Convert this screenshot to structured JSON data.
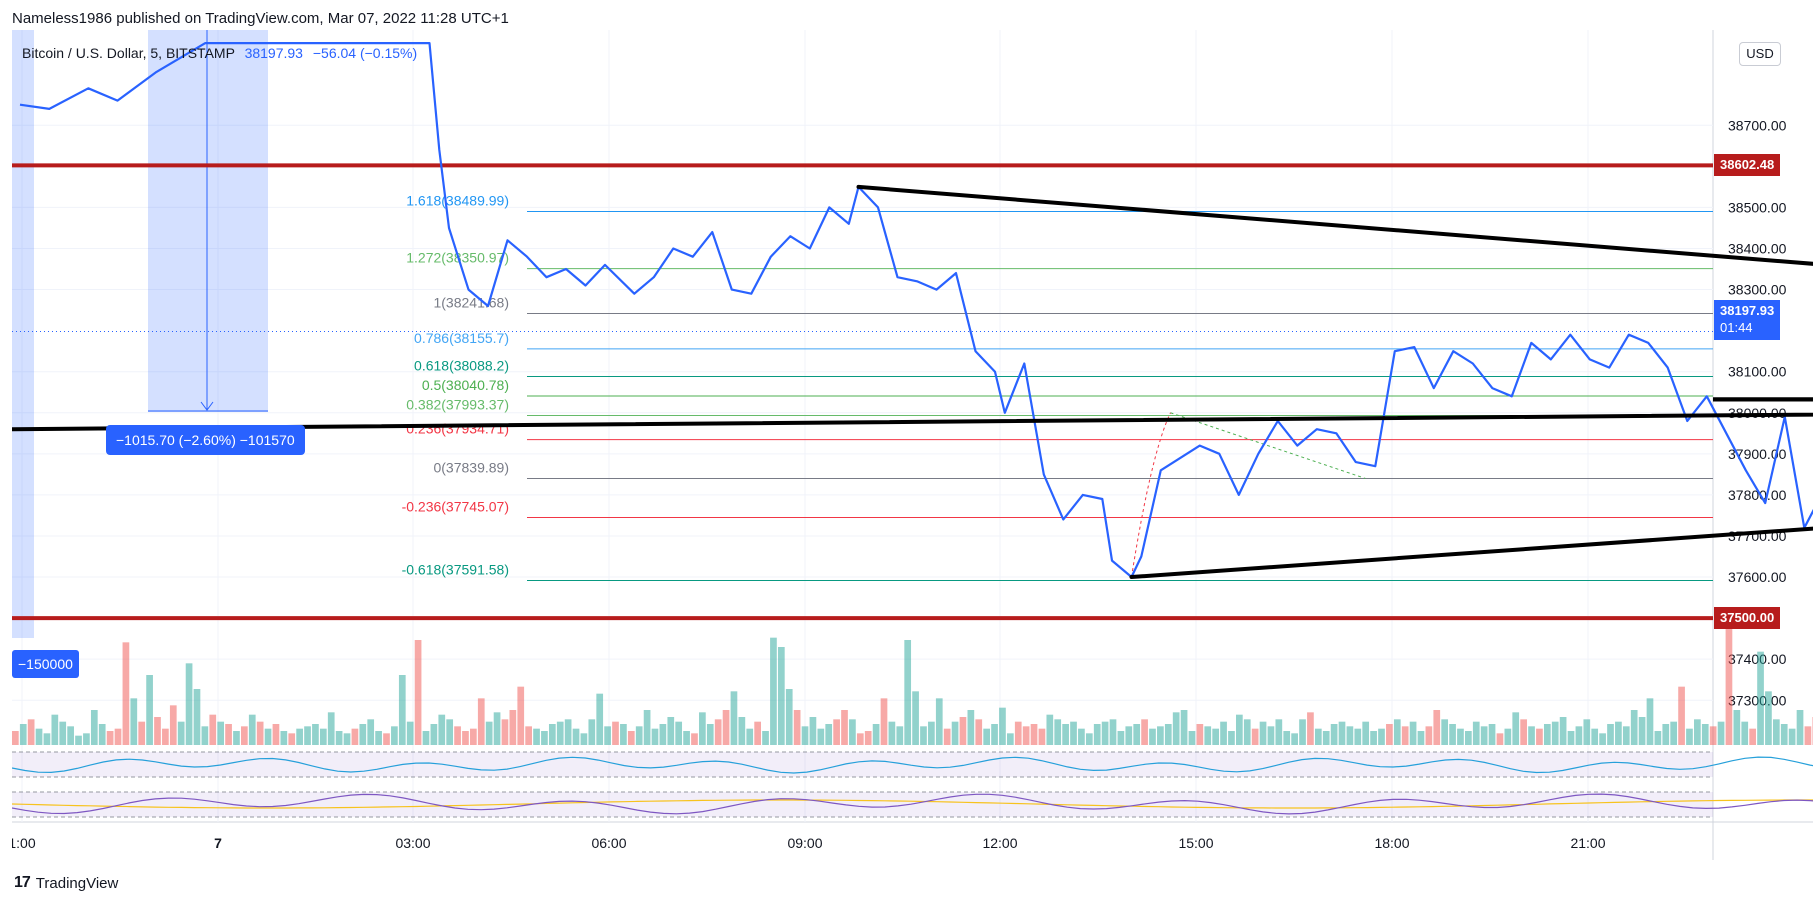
{
  "header": {
    "published": "Nameless1986 published on TradingView.com, Mar 07, 2022 11:28 UTC+1",
    "symbol": "Bitcoin / U.S. Dollar, 5, BITSTAMP",
    "price": "38197.93",
    "change": "−56.04 (−0.15%)"
  },
  "brand": {
    "logo": "17",
    "name": "TradingView"
  },
  "currency": "USD",
  "colors": {
    "price_line": "#2962ff",
    "resistance": "#b71c1c",
    "triangle": "#000000",
    "measure": "#2962ff",
    "vol_up": "#26a69a",
    "vol_down": "#ef5350"
  },
  "tags": {
    "resistance": "38602.48",
    "support": "37500.00",
    "last_price": "38197.93",
    "countdown": "01:44"
  },
  "measure": {
    "label": "−1015.70 (−2.60%) −101570",
    "volume": "−150000"
  },
  "chart_data": {
    "type": "line",
    "x_tick_labels": [
      "1:00",
      "7",
      "03:00",
      "06:00",
      "09:00",
      "12:00",
      "15:00",
      "18:00",
      "21:00"
    ],
    "y_tick_labels": [
      "38700.00",
      "38500.00",
      "38400.00",
      "38300.00",
      "38100.00",
      "38000.00",
      "37900.00",
      "37800.00",
      "37700.00",
      "37600.00",
      "37400.00",
      "37300.00"
    ],
    "ylim": [
      37230,
      38820
    ],
    "price_series": [
      [
        0.0,
        38750
      ],
      [
        0.15,
        38740
      ],
      [
        0.35,
        38790
      ],
      [
        0.5,
        38760
      ],
      [
        0.7,
        38830
      ],
      [
        0.95,
        38900
      ],
      [
        2.1,
        38900
      ],
      [
        2.15,
        38640
      ],
      [
        2.2,
        38450
      ],
      [
        2.3,
        38300
      ],
      [
        2.4,
        38260
      ],
      [
        2.5,
        38420
      ],
      [
        2.6,
        38380
      ],
      [
        2.7,
        38330
      ],
      [
        2.8,
        38350
      ],
      [
        2.9,
        38310
      ],
      [
        3.0,
        38360
      ],
      [
        3.15,
        38290
      ],
      [
        3.25,
        38330
      ],
      [
        3.35,
        38400
      ],
      [
        3.45,
        38380
      ],
      [
        3.55,
        38440
      ],
      [
        3.65,
        38300
      ],
      [
        3.75,
        38290
      ],
      [
        3.85,
        38380
      ],
      [
        3.95,
        38430
      ],
      [
        4.05,
        38400
      ],
      [
        4.15,
        38500
      ],
      [
        4.25,
        38460
      ],
      [
        4.3,
        38550
      ],
      [
        4.4,
        38500
      ],
      [
        4.5,
        38330
      ],
      [
        4.6,
        38320
      ],
      [
        4.7,
        38300
      ],
      [
        4.8,
        38340
      ],
      [
        4.9,
        38150
      ],
      [
        5.0,
        38100
      ],
      [
        5.05,
        38000
      ],
      [
        5.15,
        38120
      ],
      [
        5.25,
        37850
      ],
      [
        5.35,
        37740
      ],
      [
        5.45,
        37800
      ],
      [
        5.55,
        37790
      ],
      [
        5.6,
        37640
      ],
      [
        5.7,
        37600
      ],
      [
        5.75,
        37650
      ],
      [
        5.85,
        37860
      ],
      [
        5.95,
        37890
      ],
      [
        6.05,
        37920
      ],
      [
        6.15,
        37900
      ],
      [
        6.25,
        37800
      ],
      [
        6.35,
        37900
      ],
      [
        6.45,
        37980
      ],
      [
        6.55,
        37920
      ],
      [
        6.65,
        37960
      ],
      [
        6.75,
        37950
      ],
      [
        6.85,
        37880
      ],
      [
        6.95,
        37870
      ],
      [
        7.05,
        38150
      ],
      [
        7.15,
        38160
      ],
      [
        7.25,
        38060
      ],
      [
        7.35,
        38150
      ],
      [
        7.45,
        38120
      ],
      [
        7.55,
        38060
      ],
      [
        7.65,
        38040
      ],
      [
        7.75,
        38170
      ],
      [
        7.85,
        38130
      ],
      [
        7.95,
        38190
      ],
      [
        8.05,
        38130
      ],
      [
        8.15,
        38110
      ],
      [
        8.25,
        38190
      ],
      [
        8.35,
        38170
      ],
      [
        8.45,
        38110
      ],
      [
        8.55,
        37980
      ],
      [
        8.65,
        38040
      ],
      [
        8.75,
        37950
      ],
      [
        8.85,
        37860
      ],
      [
        8.95,
        37780
      ],
      [
        9.05,
        37990
      ],
      [
        9.15,
        37720
      ],
      [
        9.25,
        37810
      ],
      [
        9.35,
        38000
      ],
      [
        9.45,
        38150
      ],
      [
        9.55,
        38190
      ],
      [
        9.65,
        38340
      ],
      [
        9.75,
        38280
      ],
      [
        9.85,
        38250
      ],
      [
        9.95,
        38180
      ],
      [
        10.05,
        38190
      ],
      [
        10.15,
        38220
      ],
      [
        10.25,
        38150
      ],
      [
        10.35,
        38200
      ],
      [
        10.45,
        38250
      ],
      [
        10.55,
        38260
      ],
      [
        10.65,
        38197.93
      ]
    ],
    "levels": [
      {
        "label": "1.618(38489.99)",
        "value": 38489.99,
        "color": "#2196f3"
      },
      {
        "label": "1.272(38350.97)",
        "value": 38350.97,
        "color": "#66bb6a"
      },
      {
        "label": "1(38241.68)",
        "value": 38241.68,
        "color": "#787b86"
      },
      {
        "label": "0.786(38155.7)",
        "value": 38155.7,
        "color": "#42a5f5"
      },
      {
        "label": "0.618(38088.2)",
        "value": 38088.2,
        "color": "#089981"
      },
      {
        "label": "0.5(38040.78)",
        "value": 38040.78,
        "color": "#4caf50"
      },
      {
        "label": "0.382(37993.37)",
        "value": 37993.37,
        "color": "#66bb6a"
      },
      {
        "label": "0.236(37934.71)",
        "value": 37934.71,
        "color": "#f23645"
      },
      {
        "label": "0(37839.89)",
        "value": 37839.89,
        "color": "#787b86"
      },
      {
        "label": "-0.236(37745.07)",
        "value": 37745.07,
        "color": "#f23645"
      },
      {
        "label": "-0.618(37591.58)",
        "value": 37591.58,
        "color": "#089981"
      }
    ],
    "horizontal_lines": [
      38602.48,
      37500.0
    ],
    "triangle": {
      "upper": [
        [
          4.3,
          38550
        ],
        [
          18.15,
          38020
        ]
      ],
      "lower": [
        [
          5.7,
          37600
        ],
        [
          18.15,
          38020
        ]
      ],
      "mid": [
        [
          0.0,
          37960
        ],
        [
          18.15,
          38030
        ]
      ]
    },
    "volume": {
      "values": [
        12,
        18,
        22,
        14,
        10,
        26,
        20,
        16,
        8,
        10,
        30,
        18,
        12,
        14,
        88,
        40,
        20,
        60,
        24,
        14,
        34,
        20,
        70,
        48,
        16,
        26,
        20,
        18,
        12,
        16,
        26,
        20,
        14,
        18,
        12,
        10,
        14,
        16,
        18,
        14,
        28,
        12,
        10,
        14,
        18,
        22,
        12,
        10,
        16,
        60,
        20,
        90,
        12,
        18,
        26,
        22,
        16,
        12,
        14,
        40,
        20,
        28,
        22,
        30,
        50,
        16,
        14,
        12,
        18,
        20,
        22,
        14,
        10,
        22,
        44,
        16,
        20,
        18,
        12,
        16,
        30,
        14,
        18,
        24,
        20,
        12,
        10,
        28,
        18,
        22,
        30,
        46,
        24,
        14,
        20,
        12,
        92,
        84,
        48,
        30,
        16,
        24,
        14,
        18,
        22,
        30,
        22,
        10,
        12,
        18,
        40,
        20,
        16,
        90,
        46,
        16,
        20,
        40,
        14,
        20,
        24,
        30,
        22,
        14,
        18,
        32,
        10,
        20,
        16,
        18,
        14,
        26,
        22,
        18,
        20,
        14,
        10,
        18,
        20,
        22,
        12,
        16,
        18,
        22,
        14,
        16,
        18,
        28,
        30,
        12,
        18,
        16,
        14,
        20,
        12,
        26,
        22,
        14,
        20,
        16,
        22,
        12,
        10,
        22,
        28,
        14,
        12,
        18,
        20,
        16,
        14,
        20,
        12,
        14,
        18,
        22,
        16,
        20,
        12,
        16,
        30,
        22,
        18,
        14,
        12,
        20,
        16,
        18,
        10,
        14,
        28,
        22,
        16,
        14,
        18,
        20,
        24,
        12,
        16,
        22,
        14,
        10,
        18,
        20,
        16,
        30,
        24,
        40,
        12,
        18,
        20,
        50,
        14,
        22,
        18,
        16,
        20,
        110,
        30,
        20,
        14,
        80,
        46,
        22,
        18,
        14,
        30,
        16,
        24,
        14,
        20,
        22,
        18,
        16,
        40,
        20,
        16,
        28,
        12,
        40,
        14,
        26,
        20,
        18,
        16,
        50,
        22,
        14,
        20,
        30,
        16,
        18,
        150,
        22,
        14,
        20,
        16,
        12,
        18,
        20,
        14,
        12,
        10,
        16
      ],
      "colors": "mixed"
    }
  }
}
